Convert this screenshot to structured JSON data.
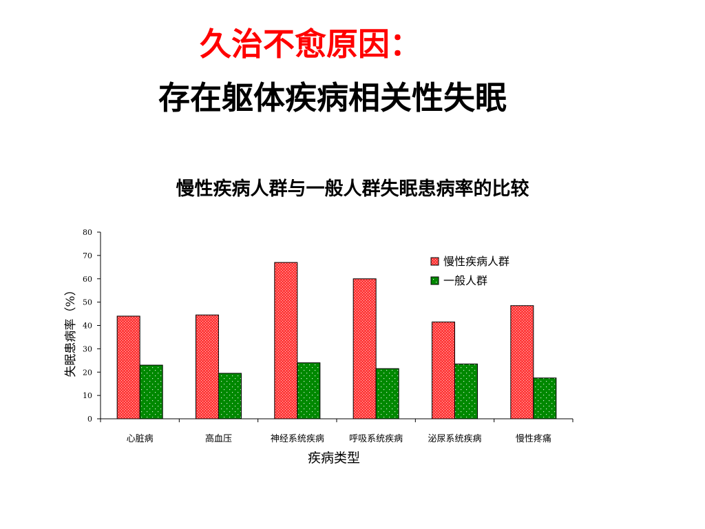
{
  "slide": {
    "heading": "久治不愈原因：",
    "subheading": "存在躯体疾病相关性失眠",
    "accent_color": "#ff0000"
  },
  "chart_data": {
    "type": "bar",
    "title": "慢性疾病人群与一般人群失眠患病率的比较",
    "xlabel": "疾病类型",
    "ylabel": "失眠患病率（%）",
    "ylim": [
      0,
      80
    ],
    "yticks": [
      0,
      10,
      20,
      30,
      40,
      50,
      60,
      70,
      80
    ],
    "categories": [
      "心脏病",
      "高血压",
      "神经系统疾病",
      "呼吸系统疾病",
      "泌尿系统疾病",
      "慢性疼痛"
    ],
    "series": [
      {
        "name": "慢性疾病人群",
        "values": [
          44,
          44.5,
          67,
          60,
          41.5,
          48.5
        ],
        "color": "#ff3b3b"
      },
      {
        "name": "一般人群",
        "values": [
          23,
          19.5,
          24,
          21.5,
          23.5,
          17.5
        ],
        "color": "#008800"
      }
    ],
    "legend": "top-right",
    "grid": false
  }
}
